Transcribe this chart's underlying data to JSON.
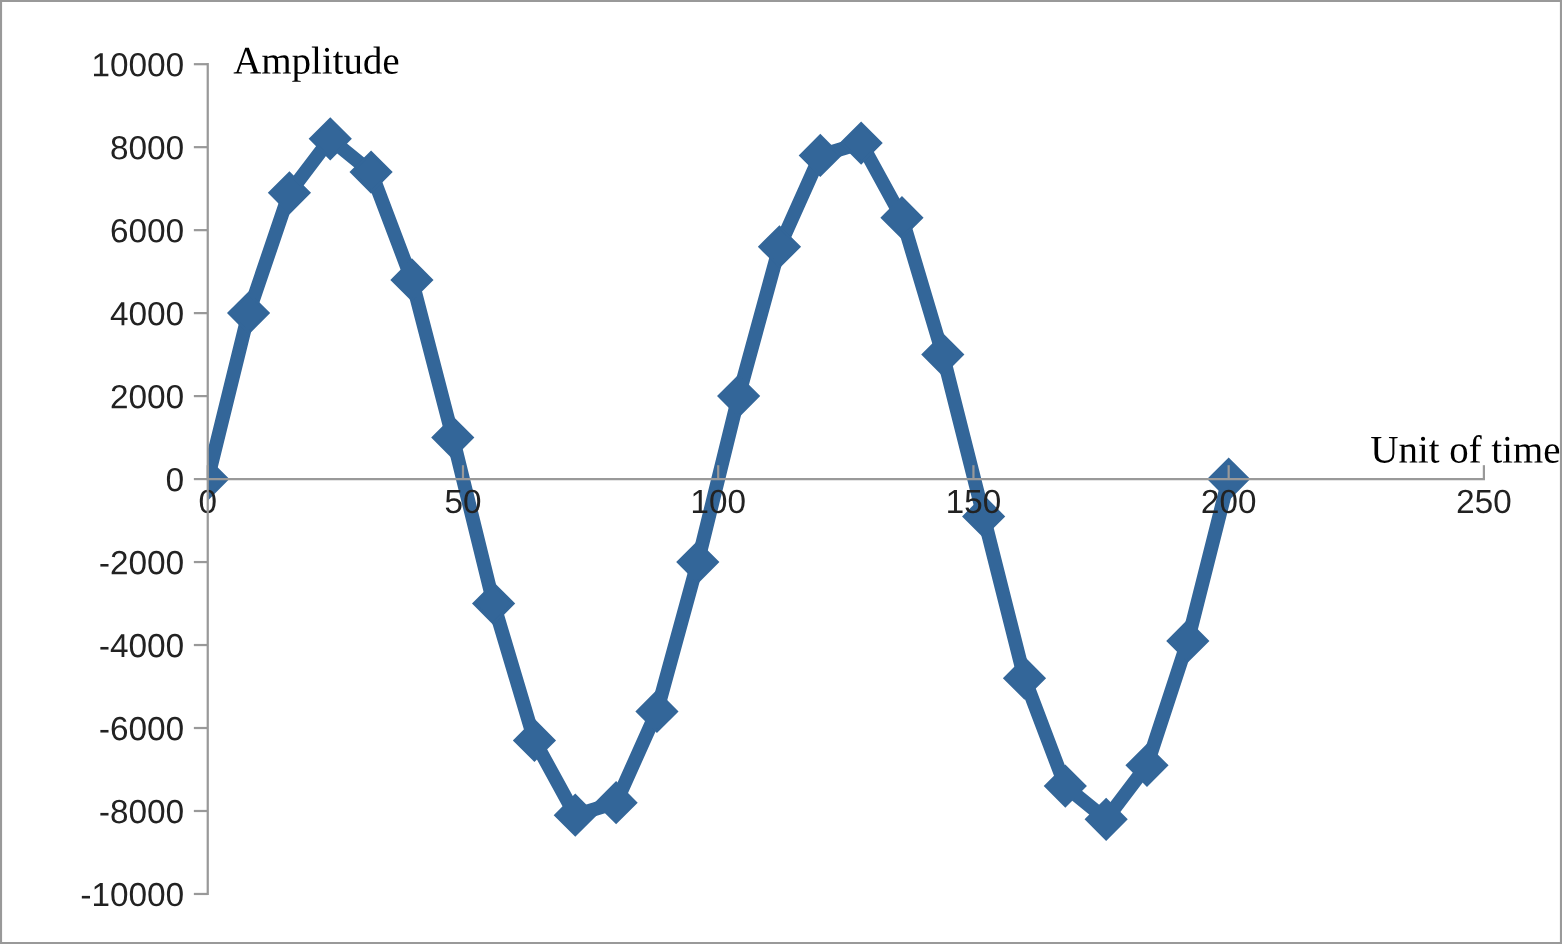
{
  "chart_data": {
    "type": "line",
    "xlabel": "Unit of time",
    "ylabel": "Amplitude",
    "x": [
      0,
      8,
      16,
      24,
      32,
      40,
      48,
      56,
      64,
      72,
      80,
      88,
      96,
      104,
      112,
      120,
      128,
      136,
      144,
      152,
      160,
      168,
      176,
      184,
      192,
      200
    ],
    "series": [
      {
        "color": "#336699",
        "values": [
          0,
          4000,
          6900,
          8200,
          7400,
          4800,
          1000,
          -3000,
          -6300,
          -8100,
          -7800,
          -5600,
          -2000,
          2000,
          5600,
          7800,
          8100,
          6300,
          3000,
          -900,
          -4800,
          -7400,
          -8200,
          -6900,
          -3900,
          0
        ]
      }
    ],
    "xlim": [
      0,
      250
    ],
    "xticks": [
      0,
      50,
      100,
      150,
      200,
      250
    ],
    "ylim": [
      -10000,
      10000
    ],
    "yticks": [
      -10000,
      -8000,
      -6000,
      -4000,
      -2000,
      0,
      2000,
      4000,
      6000,
      8000,
      10000
    ],
    "grid": false,
    "legend": false,
    "marker": "diamond",
    "line_style": "solid"
  }
}
